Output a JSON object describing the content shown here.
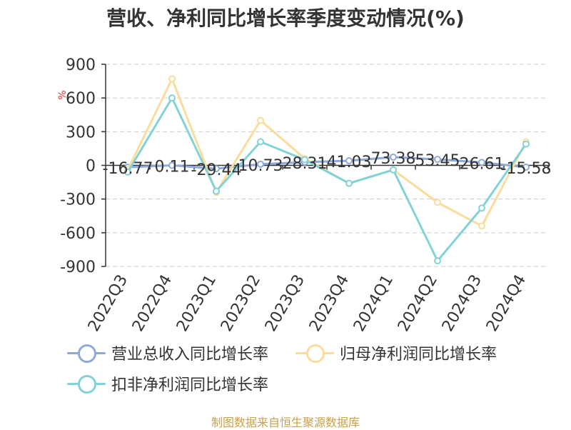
{
  "title": "营收、净利同比增长率季度变动情况(%)",
  "source": "制图数据来自恒生聚源数据库",
  "chart_data": {
    "type": "line",
    "ylabel": "%",
    "ylim": [
      -900,
      900
    ],
    "yticks": [
      900,
      600,
      300,
      0,
      -300,
      -600,
      -900
    ],
    "categories": [
      "2022Q3",
      "2022Q4",
      "2023Q1",
      "2023Q2",
      "2023Q3",
      "2023Q4",
      "2024Q1",
      "2024Q2",
      "2024Q3",
      "2024Q4"
    ],
    "series": [
      {
        "name": "营业总收入同比增长率",
        "color": "#8fa9d8",
        "values": [
          -16.77,
          0.11,
          -29.44,
          10.73,
          28.31,
          41.03,
          73.38,
          53.45,
          26.61,
          -15.58
        ],
        "labels": [
          "-16.77",
          "0.11",
          "-29.44",
          "10.73",
          "28.31",
          "41.03",
          "73.38",
          "53.45",
          "26.61",
          "-15.58"
        ]
      },
      {
        "name": "归母净利润同比增长率",
        "color": "#fadc9c",
        "values": [
          -40,
          770,
          -240,
          400,
          60,
          -160,
          -40,
          -330,
          -540,
          210
        ]
      },
      {
        "name": "扣非净利润同比增长率",
        "color": "#82d3d8",
        "values": [
          -60,
          600,
          -230,
          210,
          50,
          -160,
          -40,
          -850,
          -380,
          190
        ]
      }
    ]
  }
}
